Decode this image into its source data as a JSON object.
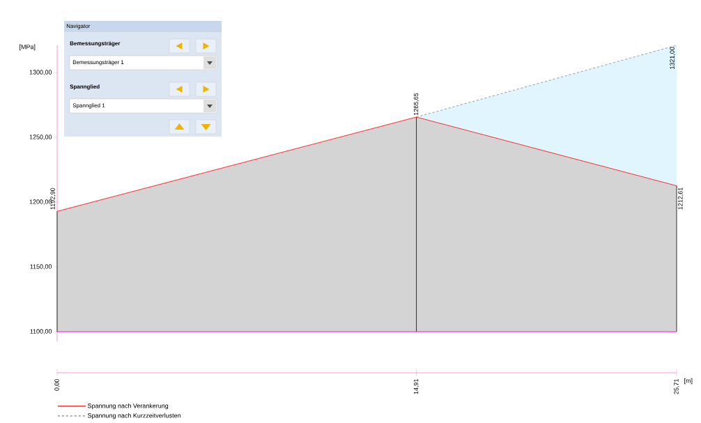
{
  "chart_data": {
    "type": "area",
    "xlabel": "[m]",
    "ylabel": "[MPa]",
    "x": [
      0,
      14.91,
      25.71
    ],
    "series": [
      {
        "name": "Spannung nach Verankerung",
        "color": "#ff0000",
        "values": [
          1192.9,
          1265.65,
          1212.61
        ],
        "value_labels": [
          "1192,90",
          "1265,65",
          "1212,61"
        ]
      },
      {
        "name": "Spannung nach Kurzzeitverlusten",
        "color": "#808080",
        "line_style": "dashed",
        "values": [
          null,
          1265.65,
          1321.0
        ],
        "value_labels": [
          null,
          null,
          "1321,00"
        ]
      }
    ],
    "xlim": [
      0,
      25.71
    ],
    "xticks": [
      {
        "value": 0,
        "label": "0,00"
      },
      {
        "value": 14.91,
        "label": "14,91"
      },
      {
        "value": 25.71,
        "label": "25,71"
      }
    ],
    "ylim": [
      1100,
      1321
    ],
    "yticks": [
      {
        "value": 1100,
        "label": "1100,00"
      },
      {
        "value": 1150,
        "label": "1150,00"
      },
      {
        "value": 1200,
        "label": "1200,00"
      },
      {
        "value": 1250,
        "label": "1250,00"
      },
      {
        "value": 1300,
        "label": "1300,00"
      }
    ],
    "ref_lines": [
      {
        "axis": "y",
        "value": 1100,
        "color": "#ff00ff"
      }
    ],
    "legend": "bottom",
    "annotations": [
      "Navigator",
      "Bemessungsträger",
      "Bemessungsträger 1",
      "Spannglied",
      "Spannglied 1"
    ]
  }
}
